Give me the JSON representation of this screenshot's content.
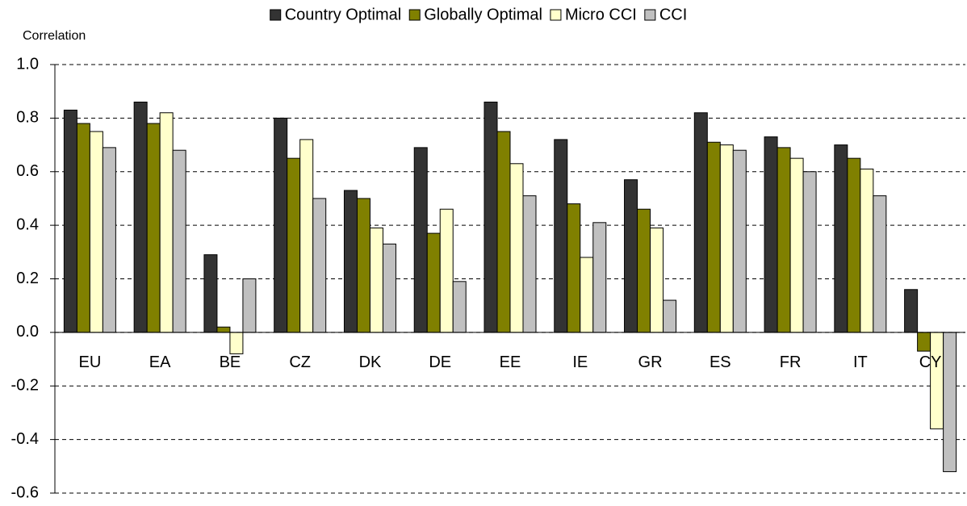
{
  "chart_data": {
    "type": "bar",
    "y_label": "Correlation",
    "categories": [
      "EU",
      "EA",
      "BE",
      "CZ",
      "DK",
      "DE",
      "EE",
      "IE",
      "GR",
      "ES",
      "FR",
      "IT",
      "CY"
    ],
    "series": [
      {
        "name": "Country Optimal",
        "color": "#333333",
        "values": [
          0.83,
          0.86,
          0.29,
          0.8,
          0.53,
          0.69,
          0.86,
          0.72,
          0.57,
          0.82,
          0.73,
          0.7,
          0.16
        ]
      },
      {
        "name": "Globally Optimal",
        "color": "#808000",
        "values": [
          0.78,
          0.78,
          0.02,
          0.65,
          0.5,
          0.37,
          0.75,
          0.48,
          0.46,
          0.71,
          0.69,
          0.65,
          -0.07
        ]
      },
      {
        "name": "Micro CCI",
        "color": "#ffffcc",
        "values": [
          0.75,
          0.82,
          -0.08,
          0.72,
          0.39,
          0.46,
          0.63,
          0.28,
          0.39,
          0.7,
          0.65,
          0.61,
          -0.36
        ]
      },
      {
        "name": "CCI",
        "color": "#c0c0c0",
        "values": [
          0.69,
          0.68,
          0.2,
          0.5,
          0.33,
          0.19,
          0.51,
          0.41,
          0.12,
          0.68,
          0.6,
          0.51,
          -0.52
        ]
      }
    ],
    "ylim": [
      -0.6,
      1.0
    ],
    "yticks": [
      {
        "value": -0.6,
        "label": "-0.6"
      },
      {
        "value": -0.4,
        "label": "-0.4"
      },
      {
        "value": -0.2,
        "label": "-0.2"
      },
      {
        "value": 0,
        "label": "0.0"
      },
      {
        "value": 0.2,
        "label": "0.2"
      },
      {
        "value": 0.4,
        "label": "0.4"
      },
      {
        "value": 0.6,
        "label": "0.6"
      },
      {
        "value": 0.8,
        "label": "0.8"
      },
      {
        "value": 1,
        "label": "1.0"
      }
    ],
    "grid": true,
    "legend": "top"
  }
}
